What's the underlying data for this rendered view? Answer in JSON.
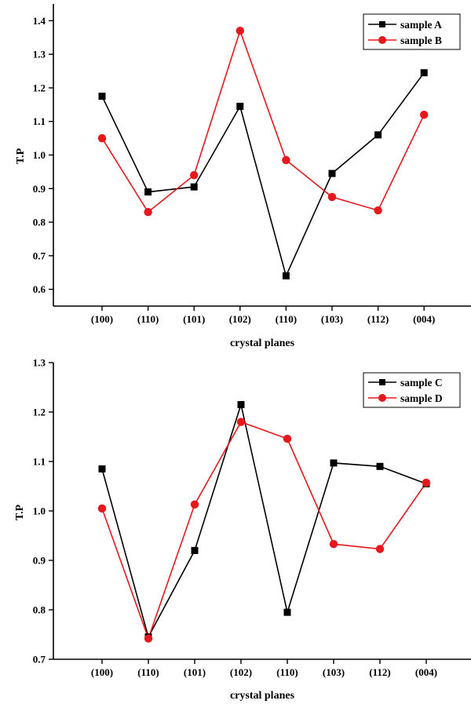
{
  "chart_data": [
    {
      "type": "line",
      "xlabel": "crystal planes",
      "ylabel": "T.P",
      "categories": [
        "(100)",
        "(110)",
        "(101)",
        "(102)",
        "(110)",
        "(103)",
        "(112)",
        "(004)"
      ],
      "ylim": [
        0.55,
        1.45
      ],
      "yticks": [
        "0.6",
        "0.7",
        "0.8",
        "0.9",
        "1.0",
        "1.1",
        "1.2",
        "1.3",
        "1.4"
      ],
      "legend_position": "top-right",
      "series": [
        {
          "name": "sample A",
          "marker": "square",
          "color": "#000000",
          "values": [
            1.175,
            0.89,
            0.905,
            1.145,
            0.64,
            0.945,
            1.06,
            1.245
          ]
        },
        {
          "name": "sample B",
          "marker": "circle",
          "color": "#e8171b",
          "values": [
            1.05,
            0.83,
            0.94,
            1.37,
            0.985,
            0.875,
            0.835,
            1.12
          ]
        }
      ]
    },
    {
      "type": "line",
      "xlabel": "crystal planes",
      "ylabel": "T.P",
      "categories": [
        "(100)",
        "(110)",
        "(101)",
        "(102)",
        "(110)",
        "(103)",
        "(112)",
        "(004)"
      ],
      "ylim": [
        0.7,
        1.3
      ],
      "yticks": [
        "0.7",
        "0.8",
        "0.9",
        "1.0",
        "1.1",
        "1.2",
        "1.3"
      ],
      "legend_position": "top-right",
      "series": [
        {
          "name": "sample C",
          "marker": "square",
          "color": "#000000",
          "values": [
            1.085,
            0.745,
            0.92,
            1.215,
            0.795,
            1.097,
            1.09,
            1.055
          ]
        },
        {
          "name": "sample D",
          "marker": "circle",
          "color": "#e8171b",
          "values": [
            1.005,
            0.742,
            1.013,
            1.18,
            1.146,
            0.933,
            0.923,
            1.057
          ]
        }
      ]
    }
  ]
}
